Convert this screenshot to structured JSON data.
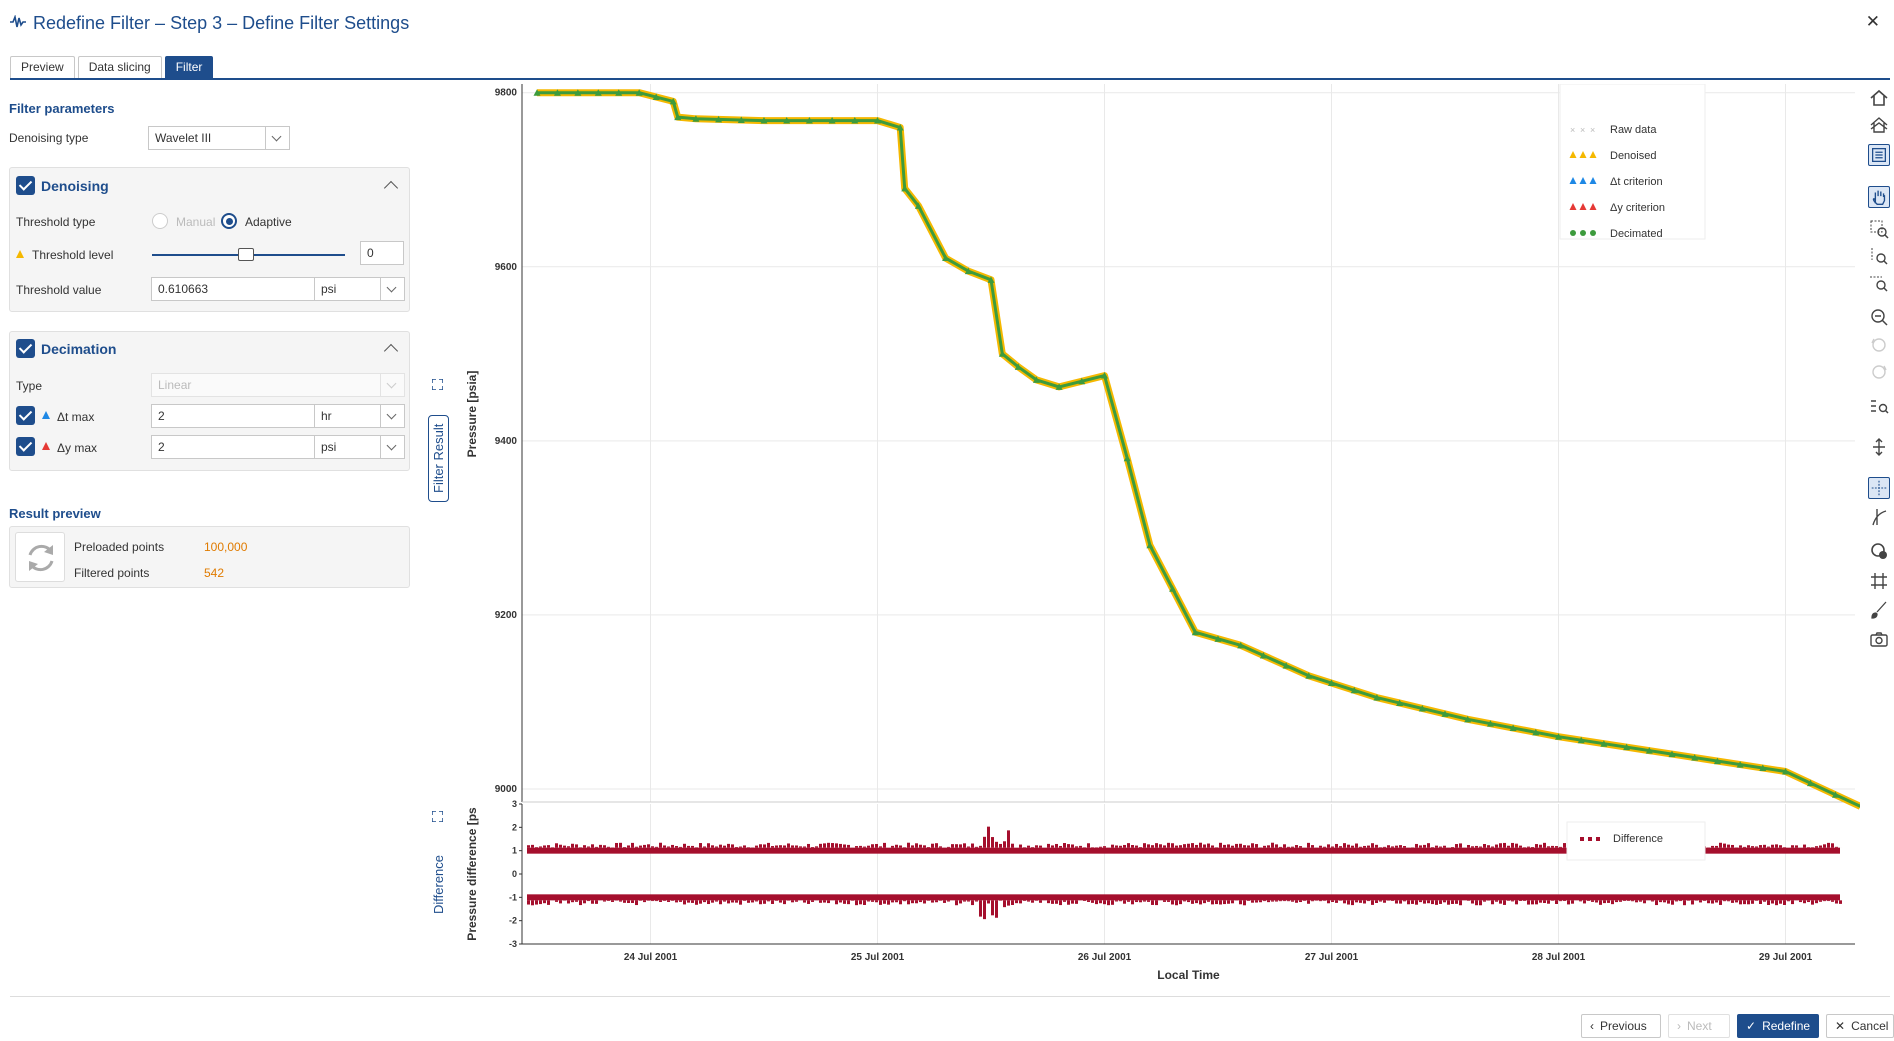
{
  "window": {
    "title": "Redefine Filter – Step 3 – Define Filter Settings"
  },
  "tabs": [
    "Preview",
    "Data slicing",
    "Filter"
  ],
  "filter_parameters": {
    "title": "Filter parameters",
    "denoising_type_label": "Denoising type",
    "denoising_type_value": "Wavelet III"
  },
  "denoising": {
    "title": "Denoising",
    "threshold_type_label": "Threshold type",
    "manual_label": "Manual",
    "adaptive_label": "Adaptive",
    "threshold_level_label": "Threshold level",
    "threshold_level_value": "0",
    "threshold_value_label": "Threshold value",
    "threshold_value": "0.610663",
    "threshold_unit": "psi"
  },
  "decimation": {
    "title": "Decimation",
    "type_label": "Type",
    "type_value": "Linear",
    "dt_label": "Δt max",
    "dt_value": "2",
    "dt_unit": "hr",
    "dy_label": "Δy max",
    "dy_value": "2",
    "dy_unit": "psi"
  },
  "result_preview": {
    "title": "Result preview",
    "preloaded_label": "Preloaded points",
    "preloaded_value": "100,000",
    "filtered_label": "Filtered points",
    "filtered_value": "542"
  },
  "side_tabs": {
    "filter_result": "Filter Result",
    "difference": "Difference"
  },
  "colors": {
    "accent": "#1e4d8c",
    "denoised": "#f5b800",
    "decimated": "#3d9b3d",
    "dt": "#1e88e5",
    "dy": "#e53935",
    "difference": "#a50f2d",
    "value": "#e07b00"
  },
  "chart_data": [
    {
      "type": "scatter",
      "ylabel": "Pressure [psia]",
      "xlabel": "Local Time",
      "ylim": [
        8985,
        9810
      ],
      "yticks": [
        9000,
        9200,
        9400,
        9600,
        9800
      ],
      "xticks": [
        "24 Jul 2001",
        "25 Jul 2001",
        "26 Jul 2001",
        "27 Jul 2001",
        "28 Jul 2001",
        "29 Jul 2001"
      ],
      "legend": [
        "Raw data",
        "Denoised",
        "Δt criterion",
        "Δy criterion",
        "Decimated"
      ],
      "legend_position": "top-right",
      "grid": true,
      "series": [
        {
          "name": "Decimated",
          "x_unit": "days from 24 Jul 2001",
          "x": [
            -0.5,
            -0.05,
            0.1,
            0.12,
            0.2,
            0.5,
            1.0,
            1.1,
            1.12,
            1.18,
            1.3,
            1.4,
            1.5,
            1.55,
            1.62,
            1.7,
            1.8,
            2.0,
            2.1,
            2.2,
            2.4,
            2.6,
            2.9,
            3.2,
            3.6,
            4.0,
            4.5,
            5.0,
            5.33
          ],
          "y": [
            9800,
            9800,
            9790,
            9772,
            9770,
            9768,
            9768,
            9760,
            9690,
            9670,
            9610,
            9595,
            9585,
            9500,
            9485,
            9470,
            9462,
            9475,
            9380,
            9280,
            9180,
            9165,
            9130,
            9105,
            9080,
            9060,
            9040,
            9020,
            8980
          ]
        }
      ]
    },
    {
      "type": "scatter",
      "ylabel": "Pressure difference [ps",
      "xlabel": "Local Time",
      "ylim": [
        -3,
        3
      ],
      "yticks": [
        -3,
        -2,
        -1,
        0,
        1,
        2,
        3
      ],
      "legend": [
        "Difference"
      ],
      "series": [
        {
          "name": "Difference",
          "bands": [
            1,
            -1
          ]
        }
      ]
    }
  ],
  "buttons": {
    "previous": "Previous",
    "next": "Next",
    "redefine": "Redefine",
    "cancel": "Cancel"
  }
}
